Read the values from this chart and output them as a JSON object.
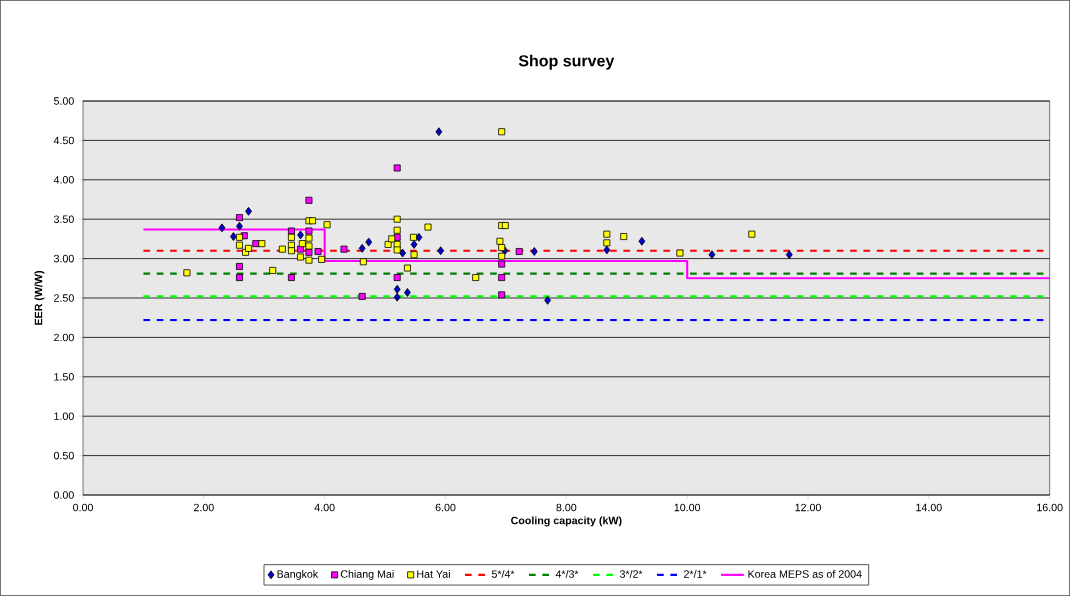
{
  "chart_data": {
    "type": "scatter",
    "title": "Shop survey",
    "xlabel": "Cooling capacity (kW)",
    "ylabel": "EER (W/W)",
    "xlim": [
      0,
      16
    ],
    "ylim": [
      0,
      5
    ],
    "xticks": [
      {
        "value": 0,
        "label": "0.00"
      },
      {
        "value": 2,
        "label": "2.00"
      },
      {
        "value": 4,
        "label": "4.00"
      },
      {
        "value": 6,
        "label": "6.00"
      },
      {
        "value": 8,
        "label": "8.00"
      },
      {
        "value": 10,
        "label": "10.00"
      },
      {
        "value": 12,
        "label": "12.00"
      },
      {
        "value": 14,
        "label": "14.00"
      },
      {
        "value": 16,
        "label": "16.00"
      }
    ],
    "yticks": [
      {
        "value": 0,
        "label": "0.00"
      },
      {
        "value": 0.5,
        "label": "0.50"
      },
      {
        "value": 1,
        "label": "1.00"
      },
      {
        "value": 1.5,
        "label": "1.50"
      },
      {
        "value": 2,
        "label": "2.00"
      },
      {
        "value": 2.5,
        "label": "2.50"
      },
      {
        "value": 3,
        "label": "3.00"
      },
      {
        "value": 3.5,
        "label": "3.50"
      },
      {
        "value": 4,
        "label": "4.00"
      },
      {
        "value": 4.5,
        "label": "4.50"
      },
      {
        "value": 5,
        "label": "5.00"
      }
    ],
    "grid": "y",
    "legend": "bottom",
    "series": [
      {
        "name": "Bangkok",
        "marker": "diamond",
        "color": "#0000cc",
        "x": [
          2.3,
          2.74,
          2.49,
          2.59,
          3.6,
          4.62,
          4.73,
          5.89,
          5.2,
          5.2,
          5.37,
          5.48,
          5.56,
          5.92,
          7.69,
          7.47,
          8.67,
          5.29,
          6.98,
          9.25,
          10.41,
          11.69
        ],
        "values": [
          3.39,
          3.6,
          3.28,
          3.41,
          3.3,
          3.13,
          3.21,
          4.61,
          2.61,
          2.51,
          2.57,
          3.18,
          3.27,
          3.1,
          2.47,
          3.09,
          3.11,
          3.07,
          3.1,
          3.22,
          3.05,
          3.05
        ]
      },
      {
        "name": "Chiang Mai",
        "marker": "square",
        "color": "#ff00ff",
        "x": [
          2.59,
          2.67,
          2.59,
          2.59,
          2.86,
          3.74,
          3.45,
          3.45,
          3.6,
          3.89,
          4.32,
          4.62,
          3.74,
          3.74,
          5.2,
          5.2,
          5.2,
          6.93,
          6.93,
          6.93,
          7.22
        ],
        "values": [
          3.52,
          3.29,
          2.9,
          2.76,
          3.19,
          3.74,
          3.35,
          2.76,
          3.12,
          3.09,
          3.12,
          2.52,
          3.35,
          3.08,
          4.15,
          3.27,
          2.76,
          2.93,
          2.76,
          2.54,
          3.09
        ]
      },
      {
        "name": "Hat Yai",
        "marker": "square",
        "color": "#ffff00",
        "x": [
          1.72,
          2.59,
          2.59,
          2.69,
          2.74,
          2.96,
          3.14,
          3.3,
          3.45,
          3.45,
          3.45,
          3.6,
          3.63,
          3.74,
          3.8,
          3.74,
          3.74,
          3.74,
          3.95,
          4.04,
          4.64,
          5.05,
          6.93,
          5.2,
          5.2,
          5.2,
          5.2,
          5.11,
          5.47,
          5.48,
          5.37,
          5.71,
          6.5,
          6.93,
          6.99,
          6.9,
          6.93,
          6.93,
          8.67,
          8.67,
          8.95,
          9.88,
          11.07
        ],
        "values": [
          2.82,
          3.27,
          3.17,
          3.08,
          3.13,
          3.19,
          2.85,
          3.12,
          3.27,
          3.17,
          3.1,
          3.02,
          3.19,
          3.48,
          3.48,
          3.26,
          3.16,
          2.98,
          2.99,
          3.43,
          2.96,
          3.18,
          4.61,
          3.5,
          3.36,
          3.18,
          3.11,
          3.25,
          3.27,
          3.05,
          2.88,
          3.4,
          2.76,
          3.42,
          3.42,
          3.22,
          3.14,
          3.03,
          3.31,
          3.2,
          3.28,
          3.07,
          3.31
        ]
      },
      {
        "name": "5*/4*",
        "type": "line",
        "line_style": "dashed",
        "color": "#ff0000",
        "x": [
          1,
          16
        ],
        "values": [
          3.1,
          3.1
        ]
      },
      {
        "name": "4*/3*",
        "type": "line",
        "line_style": "dashed",
        "color": "#008000",
        "x": [
          1,
          16
        ],
        "values": [
          2.81,
          2.81
        ]
      },
      {
        "name": "3*/2*",
        "type": "line",
        "line_style": "dashed",
        "color": "#00ff00",
        "x": [
          1,
          16
        ],
        "values": [
          2.52,
          2.52
        ]
      },
      {
        "name": "2*/1*",
        "type": "line",
        "line_style": "dashed",
        "color": "#0000ff",
        "x": [
          1,
          16
        ],
        "values": [
          2.22,
          2.22
        ]
      },
      {
        "name": "Korea MEPS as of 2004",
        "type": "line",
        "line_style": "solid",
        "color": "#ff00ff",
        "x": [
          1,
          4,
          4,
          10,
          10,
          16
        ],
        "values": [
          3.37,
          3.37,
          2.97,
          2.97,
          2.75,
          2.75
        ]
      }
    ]
  }
}
